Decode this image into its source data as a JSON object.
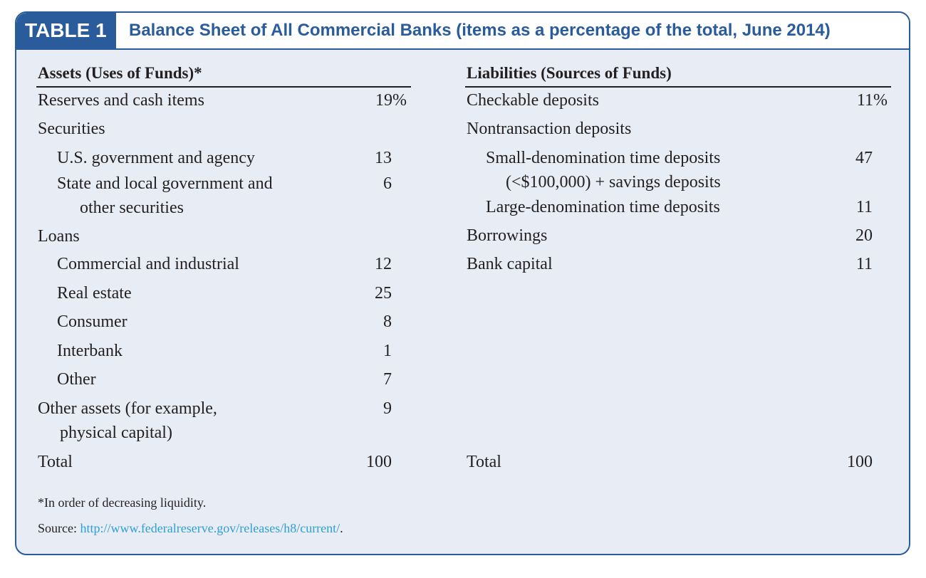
{
  "table": {
    "tag": "TABLE 1",
    "title": "Balance Sheet of All Commercial Banks (items as a percentage of the total, June 2014)"
  },
  "assets": {
    "header": "Assets (Uses of Funds)*",
    "rows": [
      {
        "label": "Reserves and cash items",
        "value": "19%"
      },
      {
        "label": "Securities",
        "value": ""
      },
      {
        "label": "U.S. government and agency",
        "value": "13"
      },
      {
        "label": "State and local government and",
        "value": "6"
      },
      {
        "label": "other securities",
        "value": ""
      },
      {
        "label": "Loans",
        "value": ""
      },
      {
        "label": "Commercial and industrial",
        "value": "12"
      },
      {
        "label": "Real estate",
        "value": "25"
      },
      {
        "label": "Consumer",
        "value": "8"
      },
      {
        "label": "Interbank",
        "value": "1"
      },
      {
        "label": "Other",
        "value": "7"
      },
      {
        "label": "Other assets (for example,",
        "value": "9"
      },
      {
        "label": "physical capital)",
        "value": ""
      },
      {
        "label": "Total",
        "value": "100"
      }
    ]
  },
  "liabilities": {
    "header": "Liabilities (Sources of Funds)",
    "rows": [
      {
        "label": "Checkable deposits",
        "value": "11%"
      },
      {
        "label": "Nontransaction deposits",
        "value": ""
      },
      {
        "label": "Small-denomination time deposits",
        "value": "47"
      },
      {
        "label": "(<$100,000) + savings deposits",
        "value": ""
      },
      {
        "label": "Large-denomination time deposits",
        "value": "11"
      },
      {
        "label": "Borrowings",
        "value": "20"
      },
      {
        "label": "Bank capital",
        "value": "11"
      },
      {
        "label": "Total",
        "value": "100"
      }
    ]
  },
  "footnotes": {
    "note": "*In order of decreasing liquidity.",
    "source_label": "Source: ",
    "source_url": "http://www.federalreserve.gov/releases/h8/current/",
    "source_end": "."
  },
  "colors": {
    "accent": "#2a5b9b",
    "panel": "#e8edf5",
    "link": "#2e9ed5"
  }
}
